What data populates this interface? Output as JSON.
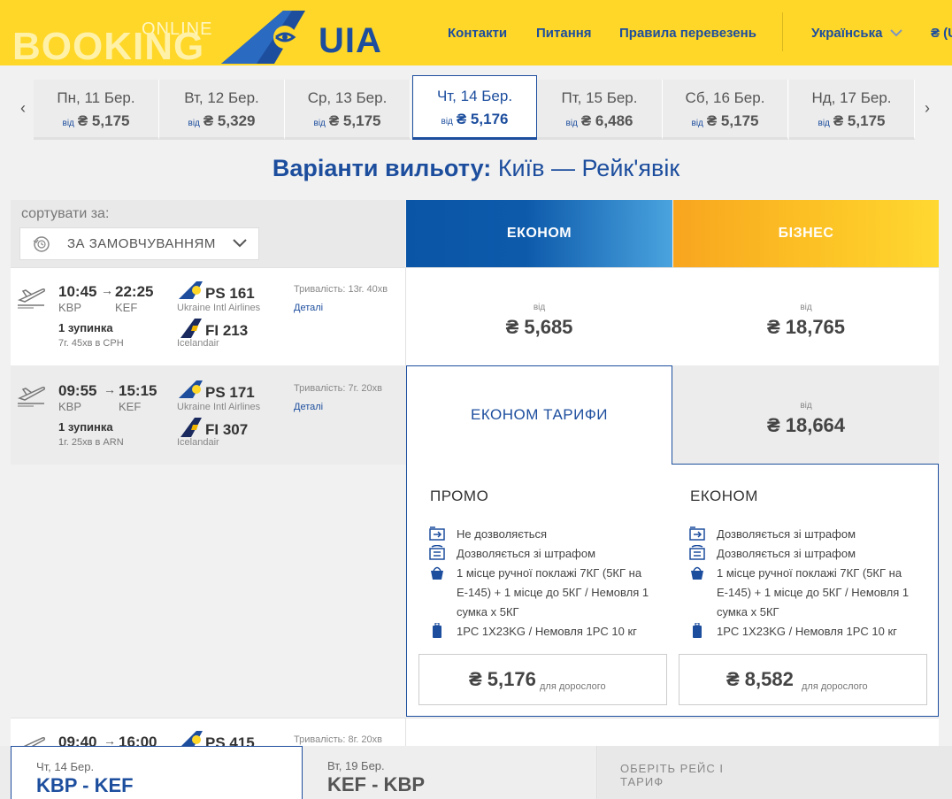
{
  "header": {
    "logo_online": "ONLINE",
    "logo_booking": "BOOKING",
    "logo_brand": "UIA",
    "nav": [
      "Контакти",
      "Питання",
      "Правила перевезень"
    ],
    "language": "Українська",
    "currency": "₴ (U"
  },
  "dates": {
    "from_label": "від",
    "items": [
      {
        "day": "Пн, 11 Бер.",
        "price": "₴ 5,175"
      },
      {
        "day": "Вт, 12 Бер.",
        "price": "₴ 5,329"
      },
      {
        "day": "Ср, 13 Бер.",
        "price": "₴ 5,175"
      },
      {
        "day": "Чт, 14 Бер.",
        "price": "₴ 5,176"
      },
      {
        "day": "Пт, 15 Бер.",
        "price": "₴ 6,486"
      },
      {
        "day": "Сб, 16 Бер.",
        "price": "₴ 5,175"
      },
      {
        "day": "Нд, 17 Бер.",
        "price": "₴ 5,175"
      }
    ],
    "active_index": 3
  },
  "title": {
    "bold": "Варіанти вильоту:",
    "route": "Київ — Рейк'явік"
  },
  "sort": {
    "label": "сортувати за:",
    "value": "ЗА ЗАМОВЧУВАННЯМ"
  },
  "classes": {
    "econom": "ЕКОНОМ",
    "business": "БІЗНЕС"
  },
  "flights": [
    {
      "dep_time": "10:45",
      "arr_time": "22:25",
      "dep_code": "KBP",
      "arr_code": "KEF",
      "stops": "1 зупинка",
      "layover": "7г. 45хв в CPH",
      "seg1_num": "PS 161",
      "seg1_airline": "Ukraine Intl Airlines",
      "seg2_num": "FI 213",
      "seg2_airline": "Icelandair",
      "duration": "Тривалість: 13г. 40хв",
      "details": "Деталі",
      "econom_from": "від",
      "econom_price": "₴ 5,685",
      "business_from": "від",
      "business_price": "₴ 18,765"
    },
    {
      "dep_time": "09:55",
      "arr_time": "15:15",
      "dep_code": "KBP",
      "arr_code": "KEF",
      "stops": "1 зупинка",
      "layover": "1г. 25хв в ARN",
      "seg1_num": "PS 171",
      "seg1_airline": "Ukraine Intl Airlines",
      "seg2_num": "FI 307",
      "seg2_airline": "Icelandair",
      "duration": "Тривалість: 7г. 20хв",
      "details": "Деталі",
      "econom_tab": "ЕКОНОМ ТАРИФИ",
      "business_from": "від",
      "business_price": "₴ 18,664"
    },
    {
      "dep_time": "09:40",
      "arr_time": "16:00",
      "seg1_num": "PS 415",
      "duration": "Тривалість: 8г. 20хв"
    }
  ],
  "tariffs": [
    {
      "name": "ПРОМО",
      "features": [
        "Не дозволяється",
        "Дозволяється зі штрафом",
        "1 місце ручної поклажі 7КГ (5КГ на E-145) + 1 місце до 5КГ / Немовля 1 сумка х 5КГ",
        "1PC 1X23KG / Немовля 1PC 10 кг"
      ],
      "feature_icons": [
        "ticket-refund-icon",
        "ticket-change-icon",
        "hand-bag-icon",
        "suitcase-icon"
      ],
      "price": "₴ 5,176",
      "price_suffix": "для дорослого"
    },
    {
      "name": "ЕКОНОМ",
      "features": [
        "Дозволяється зі штрафом",
        "Дозволяється зі штрафом",
        "1 місце ручної поклажі 7КГ (5КГ на E-145) + 1 місце до 5КГ / Немовля 1 сумка х 5КГ",
        "1PC 1X23KG / Немовля 1PC 10 кг"
      ],
      "feature_icons": [
        "ticket-refund-icon",
        "ticket-change-icon",
        "hand-bag-icon",
        "suitcase-icon"
      ],
      "price": "₴ 8,582",
      "price_suffix": "для дорослого"
    }
  ],
  "bottom": {
    "seg1_date": "Чт, 14 Бер.",
    "seg1_route": "KBP - KEF",
    "seg2_date": "Вт, 19 Бер.",
    "seg2_route": "KEF - KBP",
    "cta": "ОБЕРІТЬ РЕЙС І ТАРИФ"
  },
  "colors": {
    "brand_yellow": "#ffd728",
    "brand_blue": "#1d4e9e",
    "business_orange": "#f8a51f"
  }
}
